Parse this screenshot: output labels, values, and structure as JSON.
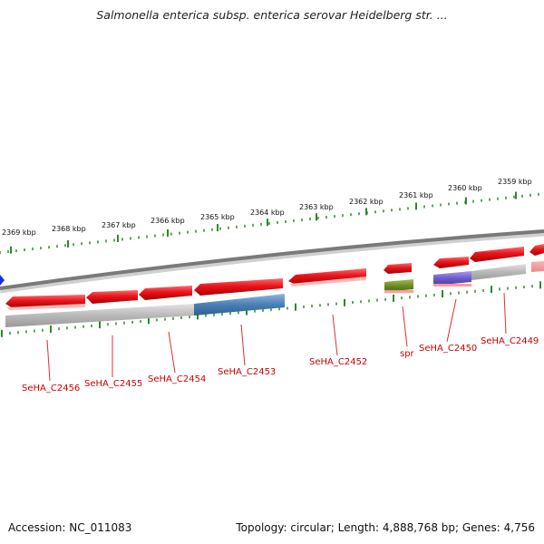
{
  "title": "Salmonella enterica subsp. enterica serovar Heidelberg str. ...",
  "footer": {
    "accession": "Accession: NC_011083",
    "summary": "Topology: circular; Length: 4,888,768 bp; Genes: 4,756"
  },
  "scale_labels": [
    "2369 kbp",
    "2368 kbp",
    "2367 kbp",
    "2366 kbp",
    "2365 kbp",
    "2364 kbp",
    "2363 kbp",
    "2362 kbp",
    "2361 kbp",
    "2360 kbp",
    "2359 kbp"
  ],
  "gene_labels": [
    "SeHA_C2456",
    "SeHA_C2455",
    "SeHA_C2454",
    "SeHA_C2453",
    "SeHA_C2452",
    "spr",
    "SeHA_C2450",
    "SeHA_C2449"
  ],
  "colors": {
    "gene_red": "#e8141c",
    "label_red": "#cc0000",
    "tick_green": "#2a8a2a",
    "backbone_gray": "#8a8a8a",
    "blue_cog": "#4a7fb5",
    "green_cog": "#6b8e23",
    "purple_cog": "#6a5acd",
    "gray_cog": "#b8b8b8"
  }
}
